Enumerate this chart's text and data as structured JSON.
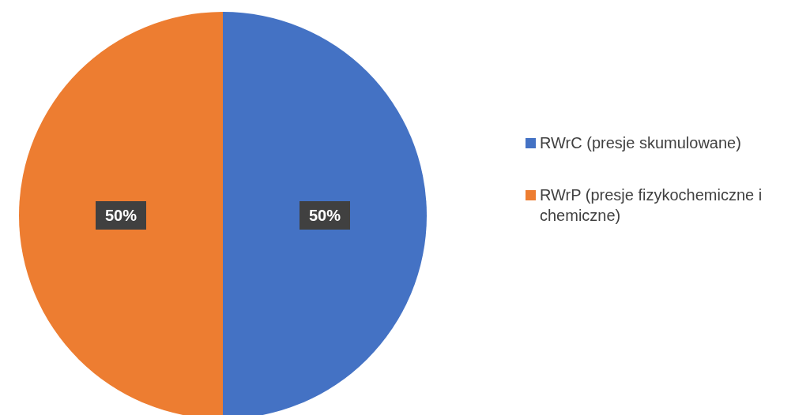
{
  "chart_data": {
    "type": "pie",
    "categories": [
      "RWrC (presje skumulowane)",
      "RWrP (presje fizykochemiczne i chemiczne)"
    ],
    "values": [
      50,
      50
    ],
    "colors": [
      "#4472c4",
      "#ed7d31"
    ],
    "value_labels": [
      "50%",
      "50%"
    ],
    "legend": "right"
  }
}
